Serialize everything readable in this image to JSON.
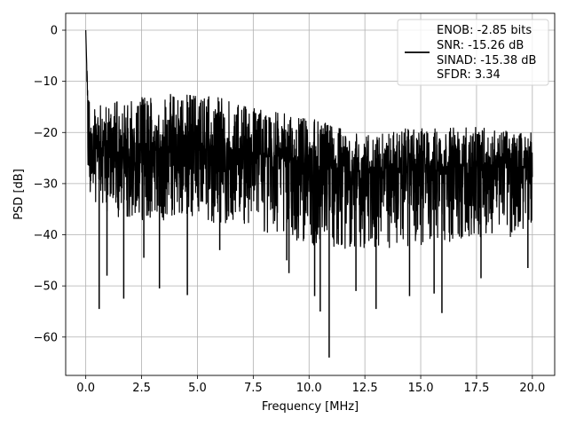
{
  "chart_data": {
    "type": "line",
    "title": "",
    "xlabel": "Frequency [MHz]",
    "ylabel": "PSD [dB]",
    "xlim": [
      -0.9,
      21.0
    ],
    "ylim": [
      -67.5,
      3.3
    ],
    "xticks": [
      0.0,
      2.5,
      5.0,
      7.5,
      10.0,
      12.5,
      15.0,
      17.5,
      20.0
    ],
    "xtick_labels": [
      "0.0",
      "2.5",
      "5.0",
      "7.5",
      "10.0",
      "12.5",
      "15.0",
      "17.5",
      "20.0"
    ],
    "yticks": [
      0,
      -10,
      -20,
      -30,
      -40,
      -50,
      -60
    ],
    "ytick_labels": [
      "0",
      "−10",
      "−20",
      "−30",
      "−40",
      "−50",
      "−60"
    ],
    "grid": true,
    "legend_position": "top-right",
    "line_color": "#000000",
    "series": [
      {
        "x_range": [
          0.0,
          20.0
        ],
        "envelope_x": [
          0.0,
          0.05,
          0.1,
          0.2,
          0.5,
          1.0,
          2.5,
          5.0,
          7.5,
          10.0,
          12.5,
          15.0,
          17.5,
          20.0
        ],
        "envelope_y": [
          0.0,
          -8.0,
          -18.0,
          -22.0,
          -23.0,
          -24.0,
          -23.5,
          -22.5,
          -24.0,
          -26.5,
          -28.0,
          -27.0,
          -26.5,
          -27.0
        ],
        "upper_y": [
          0.0,
          -5.0,
          -12.0,
          -14.0,
          -14.5,
          -14.0,
          -13.0,
          -12.0,
          -15.0,
          -17.0,
          -20.0,
          -19.0,
          -19.0,
          -20.0
        ],
        "lower_y": [
          -5.0,
          -12.0,
          -30.0,
          -32.0,
          -34.0,
          -36.0,
          -38.0,
          -37.0,
          -39.0,
          -42.0,
          -43.0,
          -42.0,
          -41.0,
          -40.0
        ],
        "spikes": [
          {
            "x": 0.6,
            "y": -54.5
          },
          {
            "x": 0.95,
            "y": -48.0
          },
          {
            "x": 1.7,
            "y": -52.5
          },
          {
            "x": 2.6,
            "y": -44.5
          },
          {
            "x": 3.3,
            "y": -50.5
          },
          {
            "x": 4.55,
            "y": -51.8
          },
          {
            "x": 6.0,
            "y": -43.0
          },
          {
            "x": 9.1,
            "y": -47.5
          },
          {
            "x": 9.0,
            "y": -45.0
          },
          {
            "x": 10.25,
            "y": -52.0
          },
          {
            "x": 10.5,
            "y": -55.0
          },
          {
            "x": 10.9,
            "y": -64.0
          },
          {
            "x": 12.1,
            "y": -51.0
          },
          {
            "x": 13.0,
            "y": -54.5
          },
          {
            "x": 14.5,
            "y": -52.0
          },
          {
            "x": 15.6,
            "y": -51.5
          },
          {
            "x": 15.95,
            "y": -55.3
          },
          {
            "x": 17.7,
            "y": -48.5
          },
          {
            "x": 19.8,
            "y": -46.5
          }
        ]
      }
    ],
    "legend": {
      "lines": [
        "ENOB: -2.85 bits",
        "SNR: -15.26 dB",
        "SINAD: -15.38 dB",
        "SFDR: 3.34"
      ]
    }
  }
}
